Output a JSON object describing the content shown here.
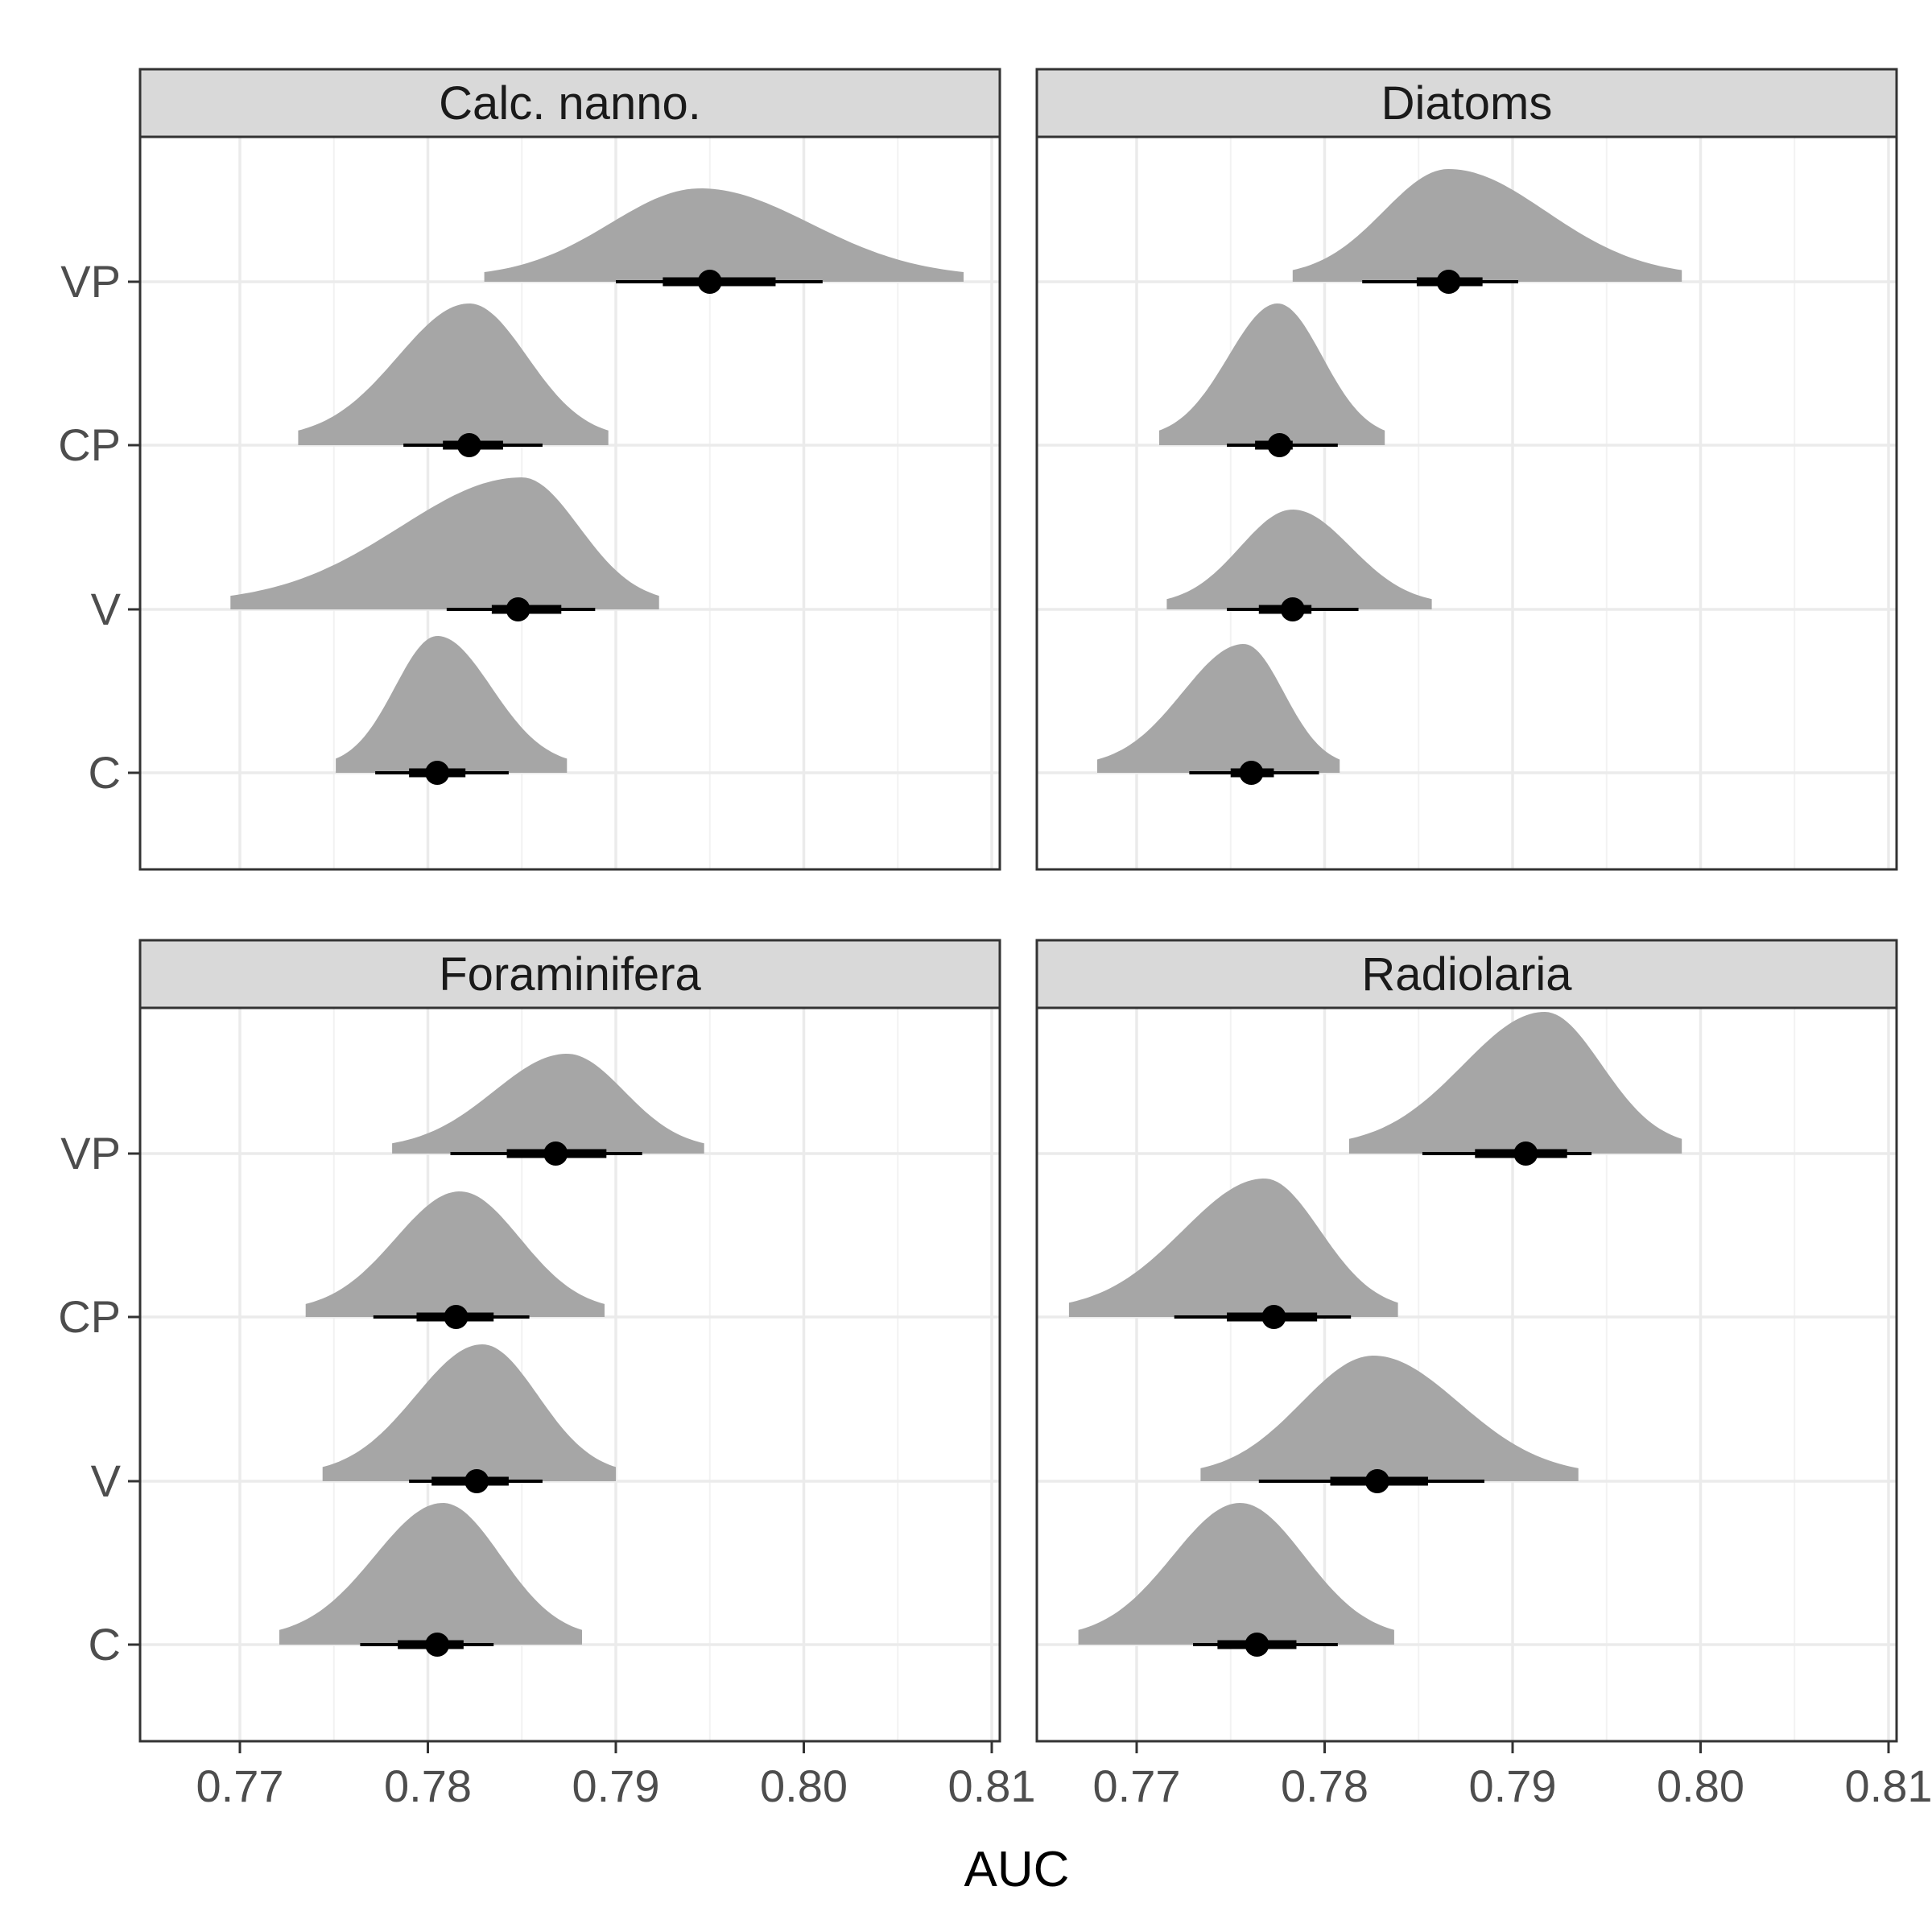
{
  "chart_data": {
    "type": "density",
    "xlabel": "AUC",
    "ylabel": "",
    "xlim": [
      0.765,
      0.81
    ],
    "x_ticks": [
      0.77,
      0.78,
      0.79,
      0.8,
      0.81
    ],
    "x_tick_labels": [
      "0.77",
      "0.78",
      "0.79",
      "0.80",
      "0.81"
    ],
    "categories": [
      "C",
      "V",
      "CP",
      "VP"
    ],
    "grid": true,
    "panels": [
      {
        "title": "Calc. nanno.",
        "series": [
          {
            "name": "C",
            "point": 0.7805,
            "inner": [
              0.779,
              0.782
            ],
            "outer": [
              0.7772,
              0.7843
            ],
            "range": [
              0.7751,
              0.7874
            ],
            "mode": 0.7805,
            "peak": 0.85
          },
          {
            "name": "V",
            "point": 0.7848,
            "inner": [
              0.7834,
              0.7871
            ],
            "outer": [
              0.781,
              0.7889
            ],
            "range": [
              0.7695,
              0.7923
            ],
            "mode": 0.785,
            "peak": 0.82
          },
          {
            "name": "CP",
            "point": 0.7822,
            "inner": [
              0.7808,
              0.784
            ],
            "outer": [
              0.7787,
              0.7861
            ],
            "range": [
              0.7731,
              0.7896
            ],
            "mode": 0.7822,
            "peak": 0.88
          },
          {
            "name": "VP",
            "point": 0.795,
            "inner": [
              0.7925,
              0.7985
            ],
            "outer": [
              0.79,
              0.801
            ],
            "range": [
              0.783,
              0.8085
            ],
            "mode": 0.7945,
            "peak": 0.58
          }
        ]
      },
      {
        "title": "Diatoms",
        "series": [
          {
            "name": "C",
            "point": 0.7761,
            "inner": [
              0.775,
              0.7773
            ],
            "outer": [
              0.7728,
              0.7797
            ],
            "range": [
              0.7679,
              0.7808
            ],
            "mode": 0.7757,
            "peak": 0.8
          },
          {
            "name": "V",
            "point": 0.7783,
            "inner": [
              0.7765,
              0.7793
            ],
            "outer": [
              0.7748,
              0.7818
            ],
            "range": [
              0.7716,
              0.7857
            ],
            "mode": 0.7783,
            "peak": 0.62
          },
          {
            "name": "CP",
            "point": 0.7776,
            "inner": [
              0.7763,
              0.7783
            ],
            "outer": [
              0.7748,
              0.7807
            ],
            "range": [
              0.7712,
              0.7832
            ],
            "mode": 0.7775,
            "peak": 0.88
          },
          {
            "name": "VP",
            "point": 0.7866,
            "inner": [
              0.7849,
              0.7884
            ],
            "outer": [
              0.782,
              0.7903
            ],
            "range": [
              0.7783,
              0.799
            ],
            "mode": 0.7866,
            "peak": 0.7
          }
        ]
      },
      {
        "title": "Foraminifera",
        "series": [
          {
            "name": "C",
            "point": 0.7805,
            "inner": [
              0.7784,
              0.7819
            ],
            "outer": [
              0.7764,
              0.7835
            ],
            "range": [
              0.7721,
              0.7882
            ],
            "mode": 0.7808,
            "peak": 0.88
          },
          {
            "name": "V",
            "point": 0.7826,
            "inner": [
              0.7802,
              0.7843
            ],
            "outer": [
              0.779,
              0.7861
            ],
            "range": [
              0.7744,
              0.79
            ],
            "mode": 0.7829,
            "peak": 0.85
          },
          {
            "name": "CP",
            "point": 0.7815,
            "inner": [
              0.7794,
              0.7835
            ],
            "outer": [
              0.7771,
              0.7854
            ],
            "range": [
              0.7735,
              0.7894
            ],
            "mode": 0.7817,
            "peak": 0.78
          },
          {
            "name": "VP",
            "point": 0.7868,
            "inner": [
              0.7842,
              0.7895
            ],
            "outer": [
              0.7812,
              0.7914
            ],
            "range": [
              0.7781,
              0.7947
            ],
            "mode": 0.7874,
            "peak": 0.62
          }
        ]
      },
      {
        "title": "Radiolaria",
        "series": [
          {
            "name": "C",
            "point": 0.7764,
            "inner": [
              0.7743,
              0.7785
            ],
            "outer": [
              0.773,
              0.7807
            ],
            "range": [
              0.7669,
              0.7837
            ],
            "mode": 0.7755,
            "peak": 0.88
          },
          {
            "name": "V",
            "point": 0.7828,
            "inner": [
              0.7803,
              0.7855
            ],
            "outer": [
              0.7765,
              0.7885
            ],
            "range": [
              0.7734,
              0.7935
            ],
            "mode": 0.7826,
            "peak": 0.78
          },
          {
            "name": "CP",
            "point": 0.7773,
            "inner": [
              0.7748,
              0.7796
            ],
            "outer": [
              0.772,
              0.7814
            ],
            "range": [
              0.7664,
              0.7839
            ],
            "mode": 0.7768,
            "peak": 0.86
          },
          {
            "name": "VP",
            "point": 0.7907,
            "inner": [
              0.788,
              0.7929
            ],
            "outer": [
              0.7852,
              0.7942
            ],
            "range": [
              0.7813,
              0.799
            ],
            "mode": 0.7917,
            "peak": 0.88
          }
        ]
      }
    ]
  },
  "style": {
    "density_fill": "#a6a6a6",
    "strip_fill": "#d9d9d9",
    "frame": "#333333",
    "grid": "#ebebeb",
    "point": "#000000",
    "tick_text": "#4d4d4d"
  }
}
